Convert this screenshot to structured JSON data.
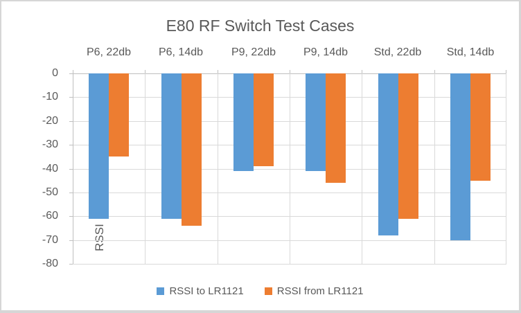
{
  "chart_data": {
    "type": "bar",
    "title": "E80 RF Switch Test Cases",
    "xlabel": "",
    "ylabel": "RSSI",
    "categories": [
      "P6, 22db",
      "P6, 14db",
      "P9, 22db",
      "P9, 14db",
      "Std, 22db",
      "Std, 14db"
    ],
    "series": [
      {
        "name": "RSSI to LR1121",
        "color": "#5B9BD5",
        "values": [
          -61,
          -61,
          -41,
          -41,
          -68,
          -70
        ]
      },
      {
        "name": "RSSI from LR1121",
        "color": "#ED7D31",
        "values": [
          -35,
          -64,
          -39,
          -46,
          -61,
          -45
        ]
      }
    ],
    "ylim": [
      0,
      -80
    ],
    "yticks": [
      0,
      -10,
      -20,
      -30,
      -40,
      -50,
      -60,
      -70,
      -80
    ],
    "grid": true,
    "legend_position": "bottom",
    "category_axis_position": "top"
  },
  "colors": {
    "text": "#595959",
    "gridline": "#D9D9D9",
    "axisline": "#BFBFBF",
    "background": "#FFFFFF"
  }
}
